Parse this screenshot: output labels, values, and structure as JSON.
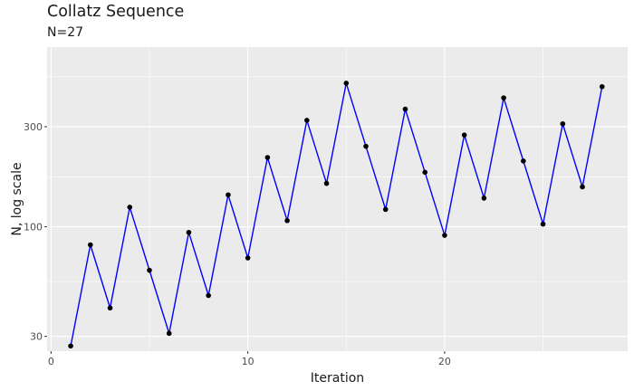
{
  "chart_data": {
    "type": "line",
    "title": "Collatz Sequence",
    "subtitle": "N=27",
    "xlabel": "Iteration",
    "ylabel": "N, log scale",
    "y_scale": "log",
    "grid": true,
    "xlim": [
      -0.2,
      29.3
    ],
    "ylim": [
      25.5,
      720
    ],
    "x_ticks": [
      0,
      10,
      20
    ],
    "x_tick_labels": [
      "0",
      "10",
      "20"
    ],
    "y_ticks": [
      30,
      100,
      300
    ],
    "y_tick_labels": [
      "30",
      "100",
      "300"
    ],
    "line_color": "#0000ff",
    "point_color": "#000000",
    "x": [
      1,
      2,
      3,
      4,
      5,
      6,
      7,
      8,
      9,
      10,
      11,
      12,
      13,
      14,
      15,
      16,
      17,
      18,
      19,
      20,
      21,
      22,
      23,
      24,
      25,
      26,
      27,
      28
    ],
    "y": [
      27,
      82,
      41,
      124,
      62,
      31,
      94,
      47,
      142,
      71,
      214,
      107,
      322,
      161,
      484,
      242,
      121,
      364,
      182,
      91,
      274,
      137,
      412,
      206,
      103,
      310,
      155,
      466
    ]
  }
}
